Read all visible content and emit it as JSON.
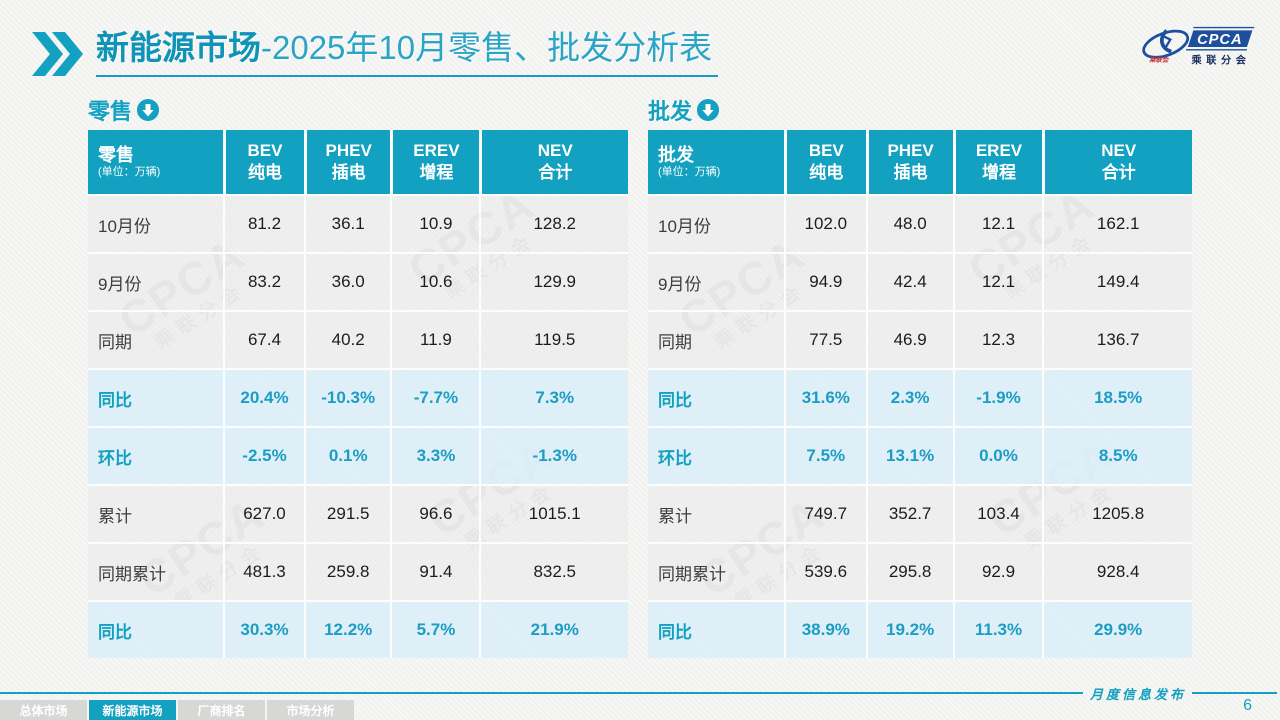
{
  "header": {
    "title_bold": "新能源市场",
    "title_rest": "-2025年10月零售、批发分析表",
    "logo": {
      "acronym": "CPCA",
      "name": "乘联分会",
      "small": "乘联会"
    }
  },
  "colors": {
    "primary_teal": "#12A1C0",
    "highlight_row_bg": "#DBEEF8",
    "highlight_text": "#1B9DC4",
    "logo_blue": "#1D4F9E",
    "logo_red": "#C53030"
  },
  "watermark": {
    "line1": "CPCA",
    "line2": "乘联分会"
  },
  "tables": [
    {
      "section_label": "零售",
      "unit": "(单位：万辆)",
      "columns": [
        {
          "line1": "BEV",
          "line2": "纯电"
        },
        {
          "line1": "PHEV",
          "line2": "插电"
        },
        {
          "line1": "EREV",
          "line2": "增程"
        },
        {
          "line1": "NEV",
          "line2": "合计"
        }
      ],
      "rows": [
        {
          "label": "10月份",
          "type": "normal",
          "values": [
            "81.2",
            "36.1",
            "10.9",
            "128.2"
          ]
        },
        {
          "label": "9月份",
          "type": "normal",
          "values": [
            "83.2",
            "36.0",
            "10.6",
            "129.9"
          ]
        },
        {
          "label": "同期",
          "type": "normal",
          "values": [
            "67.4",
            "40.2",
            "11.9",
            "119.5"
          ]
        },
        {
          "label": "同比",
          "type": "highlight",
          "values": [
            "20.4%",
            "-10.3%",
            "-7.7%",
            "7.3%"
          ]
        },
        {
          "label": "环比",
          "type": "highlight",
          "values": [
            "-2.5%",
            "0.1%",
            "3.3%",
            "-1.3%"
          ]
        },
        {
          "label": "累计",
          "type": "normal",
          "values": [
            "627.0",
            "291.5",
            "96.6",
            "1015.1"
          ]
        },
        {
          "label": "同期累计",
          "type": "normal",
          "values": [
            "481.3",
            "259.8",
            "91.4",
            "832.5"
          ]
        },
        {
          "label": "同比",
          "type": "highlight",
          "values": [
            "30.3%",
            "12.2%",
            "5.7%",
            "21.9%"
          ]
        }
      ]
    },
    {
      "section_label": "批发",
      "unit": "(单位：万辆)",
      "columns": [
        {
          "line1": "BEV",
          "line2": "纯电"
        },
        {
          "line1": "PHEV",
          "line2": "插电"
        },
        {
          "line1": "EREV",
          "line2": "增程"
        },
        {
          "line1": "NEV",
          "line2": "合计"
        }
      ],
      "rows": [
        {
          "label": "10月份",
          "type": "normal",
          "values": [
            "102.0",
            "48.0",
            "12.1",
            "162.1"
          ]
        },
        {
          "label": "9月份",
          "type": "normal",
          "values": [
            "94.9",
            "42.4",
            "12.1",
            "149.4"
          ]
        },
        {
          "label": "同期",
          "type": "normal",
          "values": [
            "77.5",
            "46.9",
            "12.3",
            "136.7"
          ]
        },
        {
          "label": "同比",
          "type": "highlight",
          "values": [
            "31.6%",
            "2.3%",
            "-1.9%",
            "18.5%"
          ]
        },
        {
          "label": "环比",
          "type": "highlight",
          "values": [
            "7.5%",
            "13.1%",
            "0.0%",
            "8.5%"
          ]
        },
        {
          "label": "累计",
          "type": "normal",
          "values": [
            "749.7",
            "352.7",
            "103.4",
            "1205.8"
          ]
        },
        {
          "label": "同期累计",
          "type": "normal",
          "values": [
            "539.6",
            "295.8",
            "92.9",
            "928.4"
          ]
        },
        {
          "label": "同比",
          "type": "highlight",
          "values": [
            "38.9%",
            "19.2%",
            "11.3%",
            "29.9%"
          ]
        }
      ]
    }
  ],
  "footer": {
    "publish_label": "月度信息发布",
    "page_number": "6",
    "tabs": [
      {
        "label": "总体市场",
        "active": false
      },
      {
        "label": "新能源市场",
        "active": true
      },
      {
        "label": "厂商排名",
        "active": false
      },
      {
        "label": "市场分析",
        "active": false
      }
    ]
  }
}
